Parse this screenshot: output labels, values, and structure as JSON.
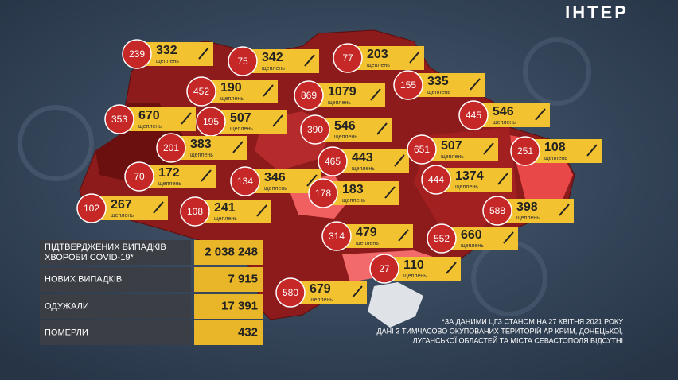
{
  "logo": "ІНТЕР",
  "vaccinations_label": "щеплень",
  "regions": [
    {
      "cases": 239,
      "vaccinations": 332
    },
    {
      "cases": 75,
      "vaccinations": 342
    },
    {
      "cases": 77,
      "vaccinations": 203
    },
    {
      "cases": 452,
      "vaccinations": 190
    },
    {
      "cases": 869,
      "vaccinations": 1079
    },
    {
      "cases": 155,
      "vaccinations": 335
    },
    {
      "cases": 353,
      "vaccinations": 670
    },
    {
      "cases": 195,
      "vaccinations": 507
    },
    {
      "cases": 445,
      "vaccinations": 546
    },
    {
      "cases": 390,
      "vaccinations": 546
    },
    {
      "cases": 201,
      "vaccinations": 383
    },
    {
      "cases": 465,
      "vaccinations": 443
    },
    {
      "cases": 651,
      "vaccinations": 507
    },
    {
      "cases": 251,
      "vaccinations": 108
    },
    {
      "cases": 70,
      "vaccinations": 172
    },
    {
      "cases": 134,
      "vaccinations": 346
    },
    {
      "cases": 444,
      "vaccinations": 1374
    },
    {
      "cases": 178,
      "vaccinations": 183
    },
    {
      "cases": 102,
      "vaccinations": 267
    },
    {
      "cases": 108,
      "vaccinations": 241
    },
    {
      "cases": 588,
      "vaccinations": 398
    },
    {
      "cases": 314,
      "vaccinations": 479
    },
    {
      "cases": 552,
      "vaccinations": 660
    },
    {
      "cases": 27,
      "vaccinations": 110
    },
    {
      "cases": 580,
      "vaccinations": 679
    }
  ],
  "table": {
    "rows": [
      [
        "ПІДТВЕРДЖЕНИХ ВИПАДКІВ",
        "ХВОРОБИ COVID-19*",
        "2 038 248"
      ],
      [
        "НОВИХ ВИПАДКІВ",
        "7 915"
      ],
      [
        "ОДУЖАЛИ",
        "17 391"
      ],
      [
        "ПОМЕРЛИ",
        "432"
      ]
    ]
  },
  "footnote": [
    "*ЗА ДАНИМИ ЦГЗ СТАНОМ НА 27 КВІТНЯ 2021 РОКУ",
    "ДАНІ З ТИМЧАСОВО ОКУПОВАНИХ ТЕРИТОРІЙ АР КРИМ, ДОНЕЦЬКОЇ,",
    "ЛУГАНСЬКОЇ ОБЛАСТЕЙ ТА МІСТА СЕВАСТОПОЛЯ ВІДСУТНІ"
  ]
}
